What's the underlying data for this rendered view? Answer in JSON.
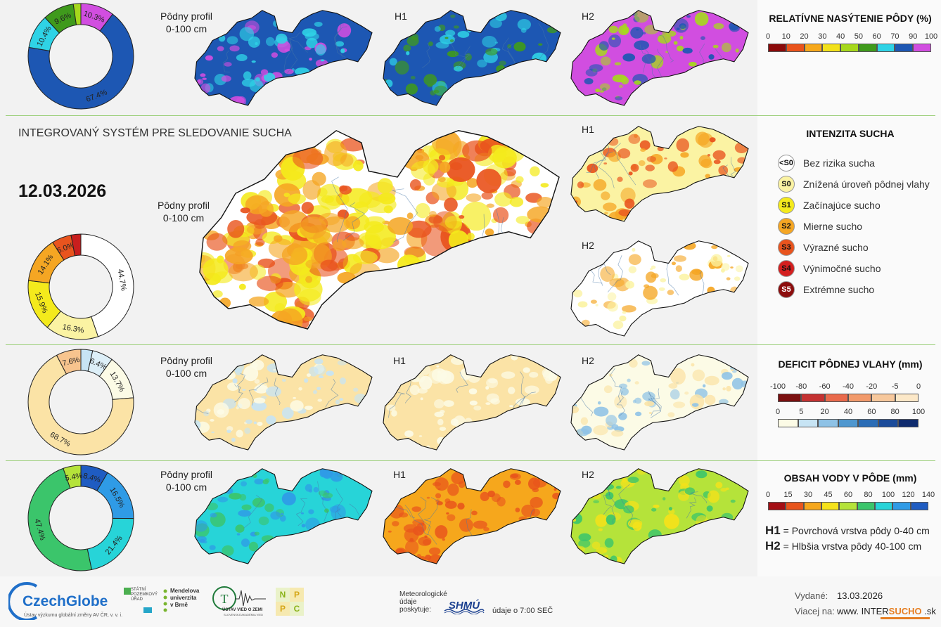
{
  "title": "INTEGROVANÝ SYSTÉM PRE SLEDOVANIE SUCHA",
  "date": "12.03.2026",
  "labels": {
    "profile_line1": "Pôdny profil",
    "profile_line2": "0-100 cm",
    "h1": "H1",
    "h2": "H2"
  },
  "legend_saturation": {
    "title": "RELATÍVNE NASÝTENIE PÔDY (%)",
    "ticks": [
      "0",
      "10",
      "20",
      "30",
      "40",
      "50",
      "60",
      "70",
      "90",
      "100"
    ],
    "colors": [
      "#8b0a0a",
      "#e9531b",
      "#f6a81c",
      "#f2e11a",
      "#a6d81c",
      "#3f9a1c",
      "#2fd3e6",
      "#1d57b3",
      "#d14ee0"
    ]
  },
  "legend_intensity": {
    "title": "INTENZITA SUCHA",
    "items": [
      {
        "code": "<S0",
        "label": "Bez rizika sucha",
        "color": "#ffffff",
        "text": "#111111"
      },
      {
        "code": "S0",
        "label": "Znížená úroveň pôdnej vlahy",
        "color": "#fbf3a3",
        "text": "#111111"
      },
      {
        "code": "S1",
        "label": "Začínajúce sucho",
        "color": "#f4ea1c",
        "text": "#111111"
      },
      {
        "code": "S2",
        "label": "Mierne sucho",
        "color": "#f5a623",
        "text": "#111111"
      },
      {
        "code": "S3",
        "label": "Výrazné sucho",
        "color": "#e9541e",
        "text": "#111111"
      },
      {
        "code": "S4",
        "label": "Výnimočné sucho",
        "color": "#d41f1f",
        "text": "#111111"
      },
      {
        "code": "S5",
        "label": "Extrémne sucho",
        "color": "#8c0d0d",
        "text": "#ffffff"
      }
    ]
  },
  "legend_deficit": {
    "title": "DEFICIT PÔDNEJ VLAHY (mm)",
    "neg_ticks": [
      "-100",
      "-80",
      "-60",
      "-40",
      "-20",
      "-5",
      "0"
    ],
    "neg_colors": [
      "#7b1010",
      "#c43232",
      "#e96a4c",
      "#f29a6b",
      "#f7c89c",
      "#fce8c8"
    ],
    "pos_ticks": [
      "0",
      "5",
      "20",
      "40",
      "60",
      "80",
      "100"
    ],
    "pos_colors": [
      "#fcfbe6",
      "#c7e4f4",
      "#8ec2e6",
      "#4f97cf",
      "#2b6db6",
      "#1b4b9a",
      "#0f2b6e"
    ]
  },
  "legend_water": {
    "title": "OBSAH VODY V PÔDE (mm)",
    "ticks": [
      "0",
      "15",
      "30",
      "45",
      "60",
      "80",
      "100",
      "120",
      "140"
    ],
    "colors": [
      "#a50f15",
      "#e8551c",
      "#f6a71c",
      "#f5e21a",
      "#b5e33a",
      "#3bc56b",
      "#27d4d8",
      "#2f9be6",
      "#1f5cc2"
    ]
  },
  "notes": {
    "h1_code": "H1",
    "h1_text": "= Povrchová vrstva pôdy 0-40 cm",
    "h2_code": "H2",
    "h2_text": "= Hlbšia vrstva pôdy 40-100 cm"
  },
  "donuts": {
    "saturation": [
      {
        "label": "10.3%",
        "value": 10.3,
        "color": "#d14ee0"
      },
      {
        "label": "67.4%",
        "value": 67.4,
        "color": "#1d57b3"
      },
      {
        "label": "10.4%",
        "value": 10.4,
        "color": "#2fd3e6"
      },
      {
        "label": "9.6%",
        "value": 9.6,
        "color": "#3f9a1c"
      },
      {
        "label": "",
        "value": 2.3,
        "color": "#a6d81c"
      }
    ],
    "intensity": [
      {
        "label": "44.7%",
        "value": 44.7,
        "color": "#ffffff"
      },
      {
        "label": "16.3%",
        "value": 16.3,
        "color": "#fbf3a3"
      },
      {
        "label": "15.9%",
        "value": 15.9,
        "color": "#f4ea1c"
      },
      {
        "label": "14.1%",
        "value": 14.1,
        "color": "#f5a623"
      },
      {
        "label": "6.0%",
        "value": 6.0,
        "color": "#e9541e"
      },
      {
        "label": "",
        "value": 3.0,
        "color": "#c81e1e"
      }
    ],
    "deficit": [
      {
        "label": "",
        "value": 3.6,
        "color": "#c7e4f4"
      },
      {
        "label": "6.4%",
        "value": 6.4,
        "color": "#ddeff8"
      },
      {
        "label": "13.7%",
        "value": 13.7,
        "color": "#fcfbe6"
      },
      {
        "label": "68.7%",
        "value": 68.7,
        "color": "#fbe3a6"
      },
      {
        "label": "7.6%",
        "value": 7.6,
        "color": "#f7c48e"
      }
    ],
    "water": [
      {
        "label": "8.4%",
        "value": 8.4,
        "color": "#1f5cc2"
      },
      {
        "label": "16.5%",
        "value": 16.5,
        "color": "#2f9be6"
      },
      {
        "label": "21.4%",
        "value": 21.4,
        "color": "#27d4d8"
      },
      {
        "label": "47.4%",
        "value": 47.4,
        "color": "#3bc56b"
      },
      {
        "label": "5.4%",
        "value": 5.4,
        "color": "#b5e33a"
      }
    ]
  },
  "map_colors": {
    "sat_profile": [
      "#1d57b3",
      "#d14ee0",
      "#2fd3e6"
    ],
    "sat_h1": [
      "#1d57b3",
      "#2fd3e6",
      "#3f9a1c"
    ],
    "sat_h2": [
      "#d14ee0",
      "#1d57b3",
      "#a6d81c"
    ],
    "intensity_main": [
      "#ffffff",
      "#f4ea1c",
      "#f5a623",
      "#e9541e"
    ],
    "intensity_h1": [
      "#fbf3a3",
      "#f5a623",
      "#e9541e"
    ],
    "intensity_h2": [
      "#ffffff",
      "#fbf3a3",
      "#f5a623"
    ],
    "deficit_profile": [
      "#fbe3a6",
      "#fcfbe6",
      "#c7e4f4"
    ],
    "deficit_h1": [
      "#fbe3a6",
      "#fcfbe6"
    ],
    "deficit_h2": [
      "#fcfbe6",
      "#fbe3a6",
      "#8ec2e6"
    ],
    "water_profile": [
      "#27d4d8",
      "#3bc56b",
      "#2f9be6"
    ],
    "water_h1": [
      "#f6a71c",
      "#e8551c"
    ],
    "water_h2": [
      "#b5e33a",
      "#f5e21a",
      "#3bc56b"
    ]
  },
  "footer": {
    "czechglobe": "CzechGlobe",
    "czechglobe_sub": "Ústav výzkumu globální změny AV ČR, v. v. i.",
    "spu_line1": "STÁTNÍ",
    "spu_line2": "POZEMKOVÝ",
    "spu_line3": "ÚŘAD",
    "mendel_line1": "Mendelova",
    "mendel_line2": "univerzita",
    "mendel_line3": "v Brně",
    "uvz": "ÚSTAV VIED O ZEMI",
    "uvz_sub": "SLOVENSKÁ AKADÉMIA VIED",
    "nppc": [
      "N",
      "P",
      "P",
      "C"
    ],
    "meteo_line1": "Meteorologické",
    "meteo_line2": "údaje",
    "meteo_line3": "poskytuje:",
    "shmu": "SHMÚ",
    "udaje": "údaje o 7:00 SEČ",
    "issued_label": "Vydané:",
    "issued_date": "13.03.2026",
    "more_label": "Viacej na:",
    "url_prefix": "www. INTER",
    "url_bold": "SUCHO",
    "url_suffix": " .sk"
  }
}
